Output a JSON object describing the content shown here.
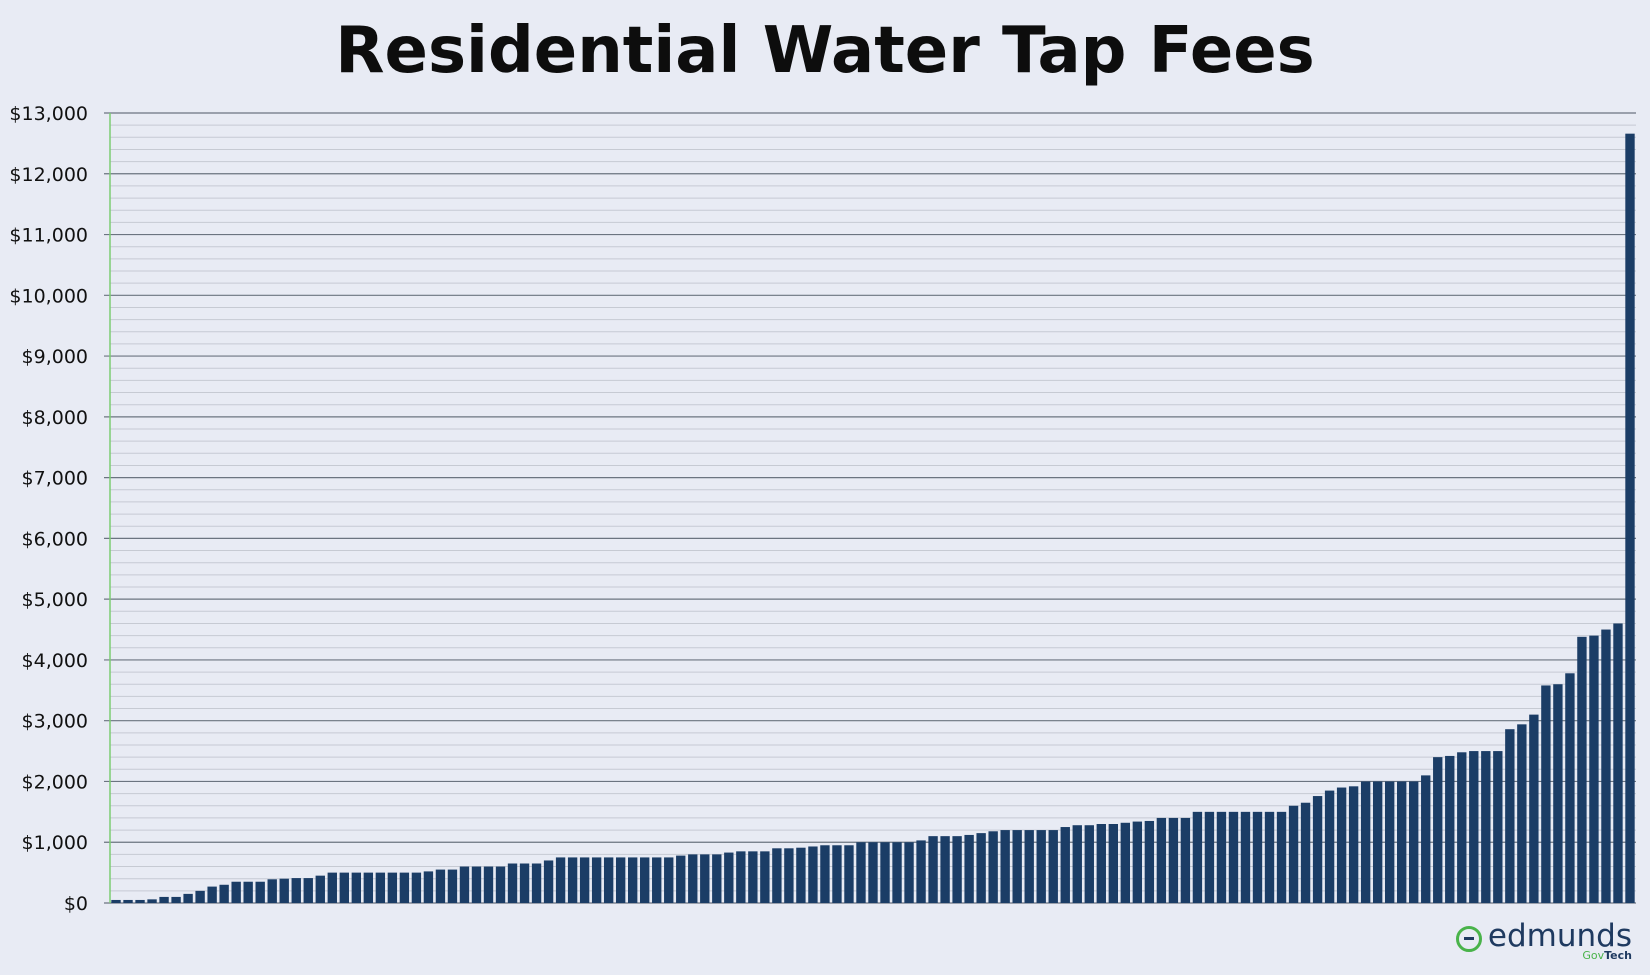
{
  "chart_data": {
    "type": "bar",
    "title": "Residential Water Tap Fees",
    "xlabel": "",
    "ylabel": "",
    "ylim": [
      0,
      13000
    ],
    "ytick_values": [
      0,
      1000,
      2000,
      3000,
      4000,
      5000,
      6000,
      7000,
      8000,
      9000,
      10000,
      11000,
      12000,
      13000
    ],
    "ytick_labels": [
      "$0",
      "$1,000",
      "$2,000",
      "$3,000",
      "$4,000",
      "$5,000",
      "$6,000",
      "$7,000",
      "$8,000",
      "$9,000",
      "$10,000",
      "$11,000",
      "$12,000",
      "$13,000"
    ],
    "minor_gridlines_per_major": 5,
    "grid": true,
    "colors": {
      "bar": "#1b3d66",
      "background": "#e8ebf4",
      "major_grid": "#6b7480",
      "minor_grid": "#c6cad3",
      "y_axis": "#7ccc73"
    },
    "values": [
      50,
      50,
      50,
      60,
      100,
      100,
      150,
      200,
      270,
      300,
      350,
      350,
      350,
      390,
      400,
      410,
      410,
      450,
      500,
      500,
      500,
      500,
      500,
      500,
      500,
      500,
      520,
      550,
      550,
      600,
      600,
      600,
      600,
      650,
      650,
      650,
      700,
      750,
      750,
      750,
      750,
      750,
      750,
      750,
      750,
      750,
      750,
      780,
      800,
      800,
      800,
      830,
      850,
      850,
      850,
      900,
      900,
      910,
      930,
      950,
      950,
      950,
      1000,
      1000,
      1000,
      1000,
      1000,
      1030,
      1100,
      1100,
      1100,
      1120,
      1150,
      1180,
      1200,
      1200,
      1200,
      1200,
      1200,
      1250,
      1280,
      1280,
      1300,
      1300,
      1320,
      1340,
      1350,
      1400,
      1400,
      1400,
      1500,
      1500,
      1500,
      1500,
      1500,
      1500,
      1500,
      1500,
      1600,
      1650,
      1760,
      1850,
      1900,
      1920,
      2000,
      2000,
      2000,
      2000,
      2000,
      2100,
      2400,
      2420,
      2480,
      2500,
      2500,
      2500,
      2860,
      2940,
      3100,
      3580,
      3600,
      3780,
      4380,
      4400,
      4500,
      4600,
      12660
    ]
  },
  "logo": {
    "word": "edmunds",
    "sub_gov": "Gov",
    "sub_tech": "Tech"
  }
}
